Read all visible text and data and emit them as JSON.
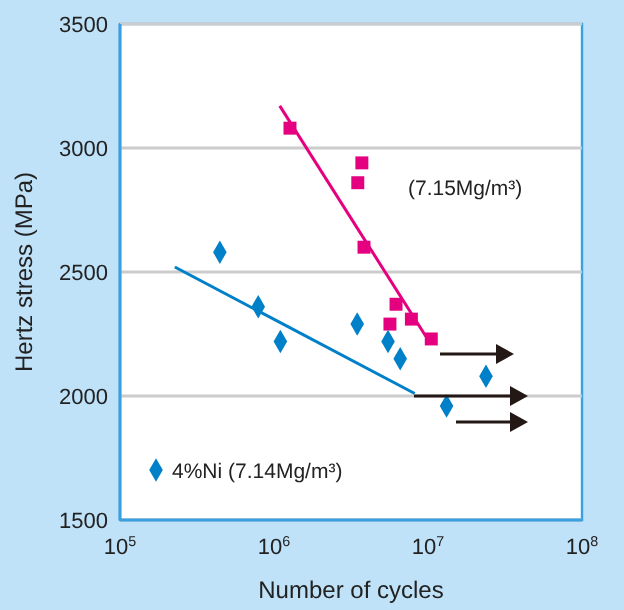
{
  "chart_data": {
    "type": "scatter",
    "xlabel": "Number of cycles",
    "ylabel": "Hertz stress (MPa)",
    "series": [
      {
        "name": "(7.15Mg/m³)",
        "marker": "square",
        "color": "#e4007f",
        "x": [
          1270000,
          3720000,
          3500000,
          3840000,
          6200000,
          5660000,
          7800000,
          10500000
        ],
        "values": [
          3080,
          2940,
          2860,
          2600,
          2370,
          2290,
          2310,
          2230
        ]
      },
      {
        "type": "line",
        "marker": "none",
        "color": "#e4007f",
        "x": [
          1090000,
          9700000
        ],
        "values": [
          3170,
          2240
        ]
      },
      {
        "name": "4%Ni (7.14Mg/m³)",
        "marker": "diamond",
        "color": "#0080c8",
        "x": [
          445000,
          790000,
          1100000,
          3470000,
          5500000,
          6600000,
          23800000,
          13200000
        ],
        "values": [
          2580,
          2360,
          2220,
          2290,
          2220,
          2150,
          2080,
          1960
        ]
      },
      {
        "type": "line",
        "marker": "none",
        "color": "#0080c8",
        "x": [
          227000,
          8200000
        ],
        "values": [
          2520,
          2010
        ]
      }
    ],
    "xlim": [
      100000,
      100000000
    ],
    "xticks": [
      {
        "value": 100000,
        "label": "10$^{5}$"
      },
      {
        "value": 1000000,
        "label": "10$^{6}$"
      },
      {
        "value": 10000000,
        "label": "10$^{7}$"
      },
      {
        "value": 100000000,
        "label": "10$^{8}$"
      }
    ],
    "ylim": [
      1500,
      3500
    ],
    "yticks": [
      1500,
      2000,
      2500,
      3000,
      3500
    ],
    "log": "x",
    "grid": "y"
  }
}
